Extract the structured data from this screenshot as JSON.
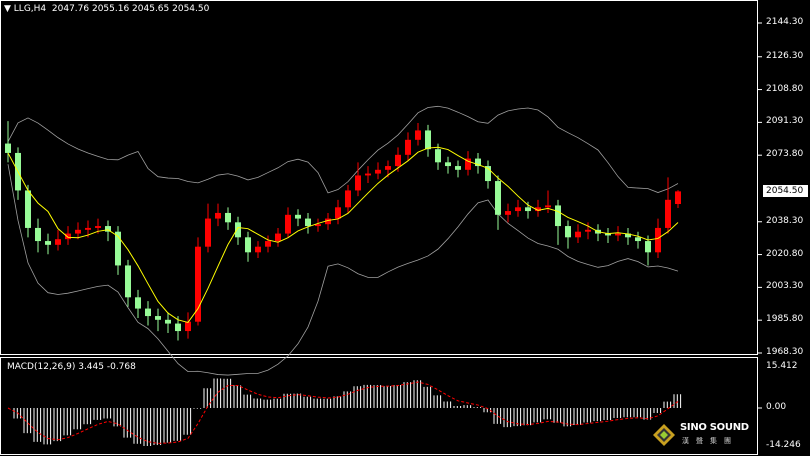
{
  "header": {
    "symbol": "LLG,H4",
    "ohlc": "2047.76 2055.16 2045.65 2054.50"
  },
  "macd_panel": {
    "label": "MACD(12,26,9) 3.445 -0.768",
    "axis_top": "15.412",
    "axis_zero": "0.00",
    "axis_bottom": "-14.246"
  },
  "logo": {
    "text": "SINO SOUND",
    "chinese": "漢聲集團"
  },
  "colors": {
    "up": "#ff0000",
    "down": "#98fb98",
    "ma": "#ffff00",
    "bands": "#a0a0a0",
    "macd_hist": "#ffffff",
    "signal": "#ff0000"
  },
  "chart_data": {
    "type": "candlestick",
    "title": "LLG,H4",
    "price_ticks": [
      "2144.30",
      "2126.30",
      "2108.80",
      "2091.30",
      "2073.80",
      "2038.30",
      "2020.80",
      "2003.30",
      "1985.80",
      "1968.30"
    ],
    "current_price": "2054.50",
    "ylim": [
      1968.3,
      2144.3
    ],
    "candles": [
      [
        2080,
        2092,
        2070,
        2075
      ],
      [
        2075,
        2078,
        2050,
        2055
      ],
      [
        2055,
        2058,
        2030,
        2035
      ],
      [
        2035,
        2040,
        2022,
        2028
      ],
      [
        2028,
        2032,
        2021,
        2026
      ],
      [
        2026,
        2034,
        2023,
        2029
      ],
      [
        2029,
        2036,
        2026,
        2032
      ],
      [
        2032,
        2038,
        2029,
        2034
      ],
      [
        2034,
        2039,
        2030,
        2035
      ],
      [
        2035,
        2040,
        2032,
        2036
      ],
      [
        2036,
        2039,
        2028,
        2033
      ],
      [
        2033,
        2036,
        2010,
        2015
      ],
      [
        2015,
        2018,
        1993,
        1998
      ],
      [
        1998,
        2002,
        1987,
        1992
      ],
      [
        1992,
        1996,
        1983,
        1988
      ],
      [
        1988,
        1992,
        1980,
        1986
      ],
      [
        1986,
        1990,
        1979,
        1984
      ],
      [
        1984,
        1988,
        1975,
        1980
      ],
      [
        1980,
        1990,
        1976,
        1985
      ],
      [
        1985,
        2030,
        1983,
        2025
      ],
      [
        2025,
        2048,
        2022,
        2040
      ],
      [
        2040,
        2048,
        2036,
        2043
      ],
      [
        2043,
        2046,
        2034,
        2038
      ],
      [
        2038,
        2041,
        2026,
        2030
      ],
      [
        2030,
        2033,
        2017,
        2022
      ],
      [
        2022,
        2028,
        2019,
        2025
      ],
      [
        2025,
        2031,
        2022,
        2028
      ],
      [
        2028,
        2035,
        2025,
        2032
      ],
      [
        2032,
        2046,
        2030,
        2042
      ],
      [
        2042,
        2045,
        2036,
        2040
      ],
      [
        2040,
        2043,
        2032,
        2036
      ],
      [
        2036,
        2040,
        2033,
        2037
      ],
      [
        2037,
        2043,
        2034,
        2040
      ],
      [
        2040,
        2050,
        2037,
        2046
      ],
      [
        2046,
        2058,
        2043,
        2055
      ],
      [
        2055,
        2070,
        2052,
        2063
      ],
      [
        2063,
        2068,
        2059,
        2064
      ],
      [
        2064,
        2070,
        2061,
        2066
      ],
      [
        2066,
        2071,
        2062,
        2068
      ],
      [
        2068,
        2078,
        2065,
        2074
      ],
      [
        2074,
        2086,
        2071,
        2082
      ],
      [
        2082,
        2091,
        2079,
        2087
      ],
      [
        2087,
        2090,
        2073,
        2077
      ],
      [
        2077,
        2080,
        2066,
        2070
      ],
      [
        2070,
        2073,
        2064,
        2068
      ],
      [
        2068,
        2071,
        2062,
        2066
      ],
      [
        2066,
        2076,
        2063,
        2072
      ],
      [
        2072,
        2075,
        2064,
        2068
      ],
      [
        2068,
        2071,
        2056,
        2060
      ],
      [
        2060,
        2063,
        2034,
        2042
      ],
      [
        2042,
        2048,
        2038,
        2044
      ],
      [
        2044,
        2050,
        2041,
        2046
      ],
      [
        2046,
        2049,
        2040,
        2044
      ],
      [
        2044,
        2050,
        2041,
        2046
      ],
      [
        2046,
        2055,
        2043,
        2047
      ],
      [
        2047,
        2050,
        2026,
        2036
      ],
      [
        2036,
        2039,
        2024,
        2030
      ],
      [
        2030,
        2037,
        2027,
        2033
      ],
      [
        2033,
        2038,
        2029,
        2034
      ],
      [
        2034,
        2037,
        2028,
        2032
      ],
      [
        2032,
        2035,
        2027,
        2031
      ],
      [
        2031,
        2036,
        2028,
        2032
      ],
      [
        2032,
        2035,
        2026,
        2030
      ],
      [
        2030,
        2033,
        2024,
        2028
      ],
      [
        2028,
        2031,
        2015,
        2022
      ],
      [
        2022,
        2040,
        2019,
        2035
      ],
      [
        2035,
        2062,
        2032,
        2050
      ],
      [
        2047.76,
        2055.16,
        2045.65,
        2054.5
      ]
    ],
    "indicators": [
      "Bollinger Bands",
      "Moving Average",
      "MACD(12,26,9)"
    ]
  }
}
